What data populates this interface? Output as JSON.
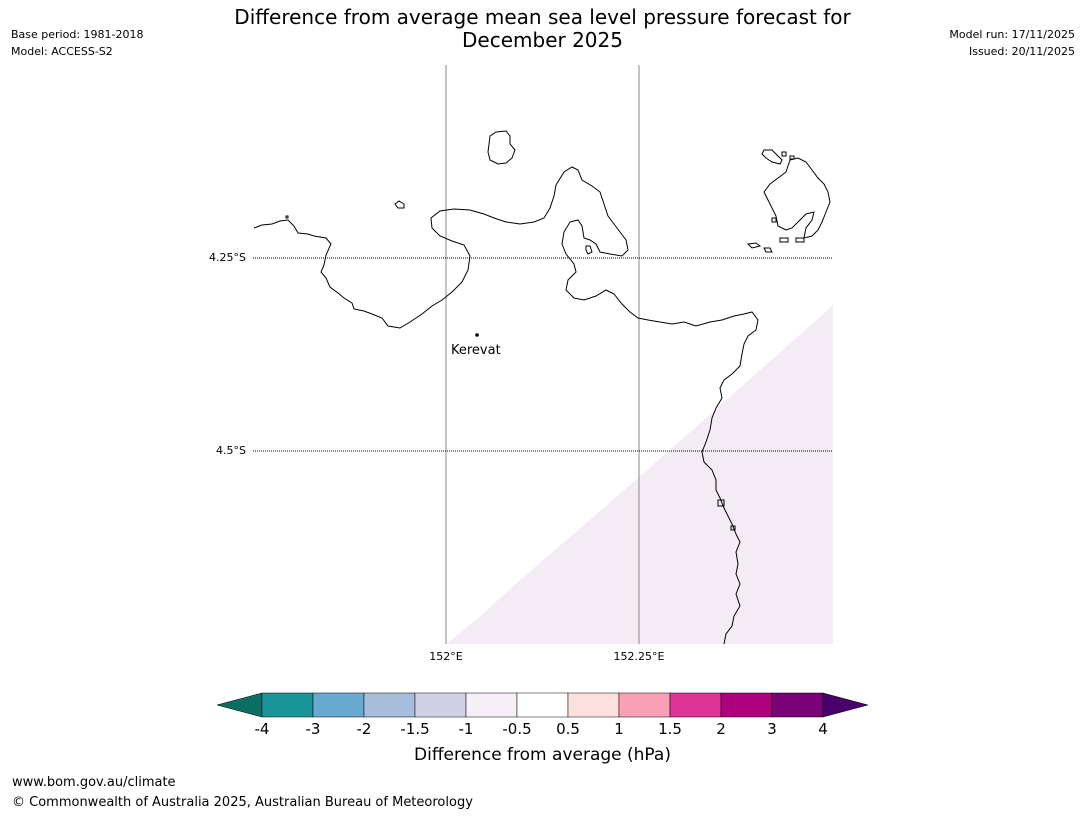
{
  "header": {
    "title_line1": "Difference from average mean sea level pressure forecast for",
    "title_line2": "December 2025",
    "base_period": "Base period: 1981-2018",
    "model": "Model: ACCESS-S2",
    "model_run": "Model run: 17/11/2025",
    "issued": "Issued: 20/11/2025"
  },
  "map": {
    "lat_labels": [
      "4.25°S",
      "4.5°S"
    ],
    "lon_labels": [
      "152°E",
      "152.25°E"
    ],
    "place": {
      "name": "Kerevat"
    },
    "anomaly_fill_color": "#f4ecf5",
    "land_outline_color": "#000000"
  },
  "colorbar": {
    "title": "Difference from average (hPa)",
    "ticks": [
      "-4",
      "-3",
      "-2",
      "-1.5",
      "-1",
      "-0.5",
      "0.5",
      "1",
      "1.5",
      "2",
      "3",
      "4"
    ],
    "colors": [
      "#0a6e62",
      "#1a9498",
      "#67a9cf",
      "#a6bddb",
      "#d0d1e6",
      "#f6eff7",
      "#ffffff",
      "#fde0dd",
      "#fa9fb5",
      "#dd3497",
      "#ae017e",
      "#7a0177",
      "#49006a"
    ]
  },
  "footer": {
    "url": "www.bom.gov.au/climate",
    "copyright": "© Commonwealth of Australia 2025, Australian Bureau of Meteorology"
  }
}
